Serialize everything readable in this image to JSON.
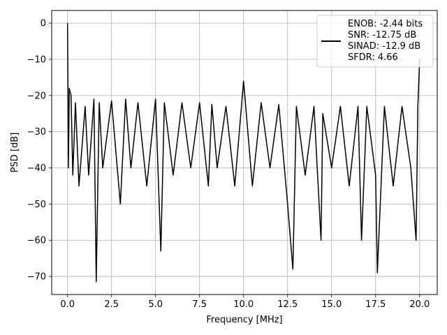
{
  "chart_data": {
    "type": "line",
    "title": "",
    "xlabel": "Frequency [MHz]",
    "ylabel": "PSD [dB]",
    "xlim": [
      -0.9,
      21.0
    ],
    "ylim": [
      -75,
      3.5
    ],
    "xticks": [
      0.0,
      2.5,
      5.0,
      7.5,
      10.0,
      12.5,
      15.0,
      17.5,
      20.0
    ],
    "xtick_labels": [
      "0.0",
      "2.5",
      "5.0",
      "7.5",
      "10.0",
      "12.5",
      "15.0",
      "17.5",
      "20.0"
    ],
    "yticks": [
      0,
      -10,
      -20,
      -30,
      -40,
      -50,
      -60,
      -70
    ],
    "ytick_labels": [
      "0",
      "−10",
      "−20",
      "−30",
      "−40",
      "−50",
      "−60",
      "−70"
    ],
    "grid": true,
    "legend_position": "top-right",
    "legend_entries": [
      "ENOB: -2.44 bits",
      "SNR: -12.75 dB",
      "SINAD: -12.9 dB",
      "SFDR: 4.66"
    ],
    "series": [
      {
        "color": "#000000",
        "x": [
          0.0,
          0.02,
          0.05,
          0.1,
          0.2,
          0.3,
          0.45,
          0.65,
          1.0,
          1.2,
          1.5,
          1.63,
          1.8,
          2.0,
          2.5,
          3.0,
          3.3,
          3.6,
          4.0,
          4.5,
          5.0,
          5.3,
          5.5,
          6.0,
          6.5,
          7.0,
          7.5,
          8.0,
          8.2,
          8.5,
          9.0,
          9.5,
          10.0,
          10.5,
          11.0,
          11.5,
          12.0,
          12.5,
          12.8,
          13.0,
          13.5,
          14.0,
          14.4,
          14.5,
          15.0,
          15.5,
          16.0,
          16.5,
          16.7,
          17.0,
          17.5,
          17.6,
          18.0,
          18.5,
          19.0,
          19.5,
          19.8,
          19.9,
          20.0
        ],
        "y": [
          0.0,
          -15.0,
          -40.0,
          -18.0,
          -20.0,
          -42.0,
          -22.0,
          -45.0,
          -23.0,
          -42.0,
          -21.0,
          -71.5,
          -22.0,
          -40.0,
          -21.5,
          -50.0,
          -21.0,
          -40.0,
          -22.0,
          -45.0,
          -21.0,
          -63.0,
          -22.0,
          -42.0,
          -22.0,
          -40.0,
          -22.0,
          -45.0,
          -22.5,
          -40.0,
          -23.0,
          -45.0,
          -16.0,
          -45.0,
          -22.0,
          -40.0,
          -22.5,
          -50.0,
          -68.0,
          -23.0,
          -42.0,
          -23.0,
          -60.0,
          -25.0,
          -40.0,
          -23.0,
          -45.0,
          -23.0,
          -60.0,
          -23.0,
          -42.0,
          -69.0,
          -23.0,
          -45.0,
          -23.0,
          -40.0,
          -60.0,
          -23.0,
          -10.0
        ]
      }
    ]
  }
}
